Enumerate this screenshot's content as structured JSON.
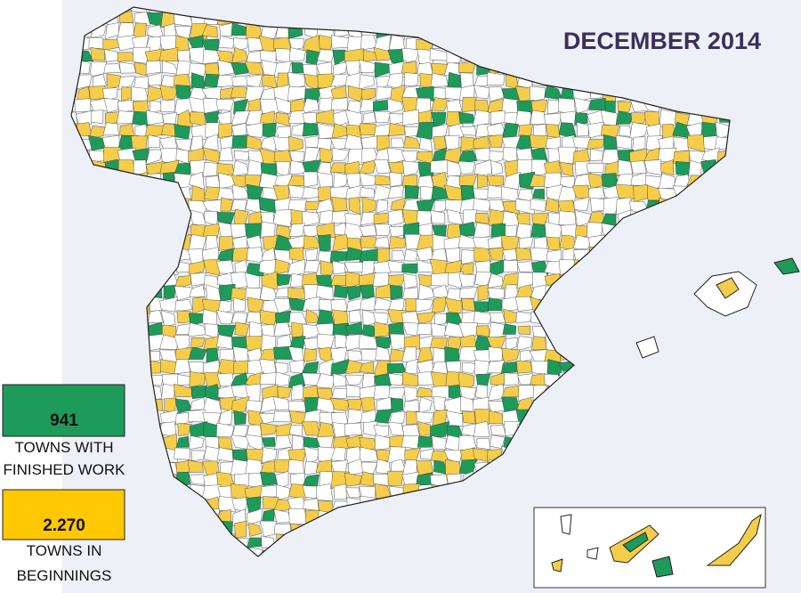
{
  "header": {
    "title": "DECEMBER 2014"
  },
  "legend": [
    {
      "count": "941",
      "lines": [
        "TOWNS WITH",
        "FINISHED WORK"
      ]
    },
    {
      "count": "2.270",
      "lines": [
        "TOWNS IN",
        "BEGINNINGS"
      ]
    }
  ]
}
